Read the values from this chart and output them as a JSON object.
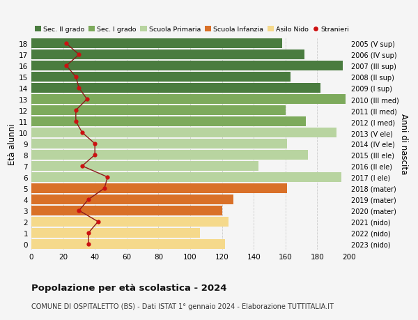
{
  "ages": [
    18,
    17,
    16,
    15,
    14,
    13,
    12,
    11,
    10,
    9,
    8,
    7,
    6,
    5,
    4,
    3,
    2,
    1,
    0
  ],
  "right_labels": [
    "2005 (V sup)",
    "2006 (IV sup)",
    "2007 (III sup)",
    "2008 (II sup)",
    "2009 (I sup)",
    "2010 (III med)",
    "2011 (II med)",
    "2012 (I med)",
    "2013 (V ele)",
    "2014 (IV ele)",
    "2015 (III ele)",
    "2016 (II ele)",
    "2017 (I ele)",
    "2018 (mater)",
    "2019 (mater)",
    "2020 (mater)",
    "2021 (nido)",
    "2022 (nido)",
    "2023 (nido)"
  ],
  "bar_values": [
    158,
    172,
    196,
    163,
    182,
    198,
    160,
    173,
    192,
    161,
    174,
    143,
    195,
    161,
    127,
    120,
    124,
    106,
    122
  ],
  "bar_colors": [
    "#4a7c3f",
    "#4a7c3f",
    "#4a7c3f",
    "#4a7c3f",
    "#4a7c3f",
    "#7daa5c",
    "#7daa5c",
    "#7daa5c",
    "#b8d4a0",
    "#b8d4a0",
    "#b8d4a0",
    "#b8d4a0",
    "#b8d4a0",
    "#d97028",
    "#d97028",
    "#d97028",
    "#f5d98b",
    "#f5d98b",
    "#f5d98b"
  ],
  "stranieri_values": [
    22,
    30,
    22,
    28,
    30,
    35,
    28,
    28,
    32,
    40,
    40,
    32,
    48,
    46,
    36,
    30,
    42,
    36,
    36
  ],
  "legend_labels": [
    "Sec. II grado",
    "Sec. I grado",
    "Scuola Primaria",
    "Scuola Infanzia",
    "Asilo Nido",
    "Stranieri"
  ],
  "legend_colors": [
    "#4a7c3f",
    "#7daa5c",
    "#b8d4a0",
    "#d97028",
    "#f5d98b",
    "#cc1111"
  ],
  "xlim": [
    0,
    200
  ],
  "xticks": [
    0,
    20,
    40,
    60,
    80,
    100,
    120,
    140,
    160,
    180,
    200
  ],
  "ylabel_left": "Età alunni",
  "ylabel_right": "Anni di nascita",
  "title": "Popolazione per età scolastica - 2024",
  "subtitle": "COMUNE DI OSPITALETTO (BS) - Dati ISTAT 1° gennaio 2024 - Elaborazione TUTTITALIA.IT",
  "bg_color": "#f5f5f5",
  "line_color": "#8b1a1a",
  "dot_color": "#cc1111"
}
